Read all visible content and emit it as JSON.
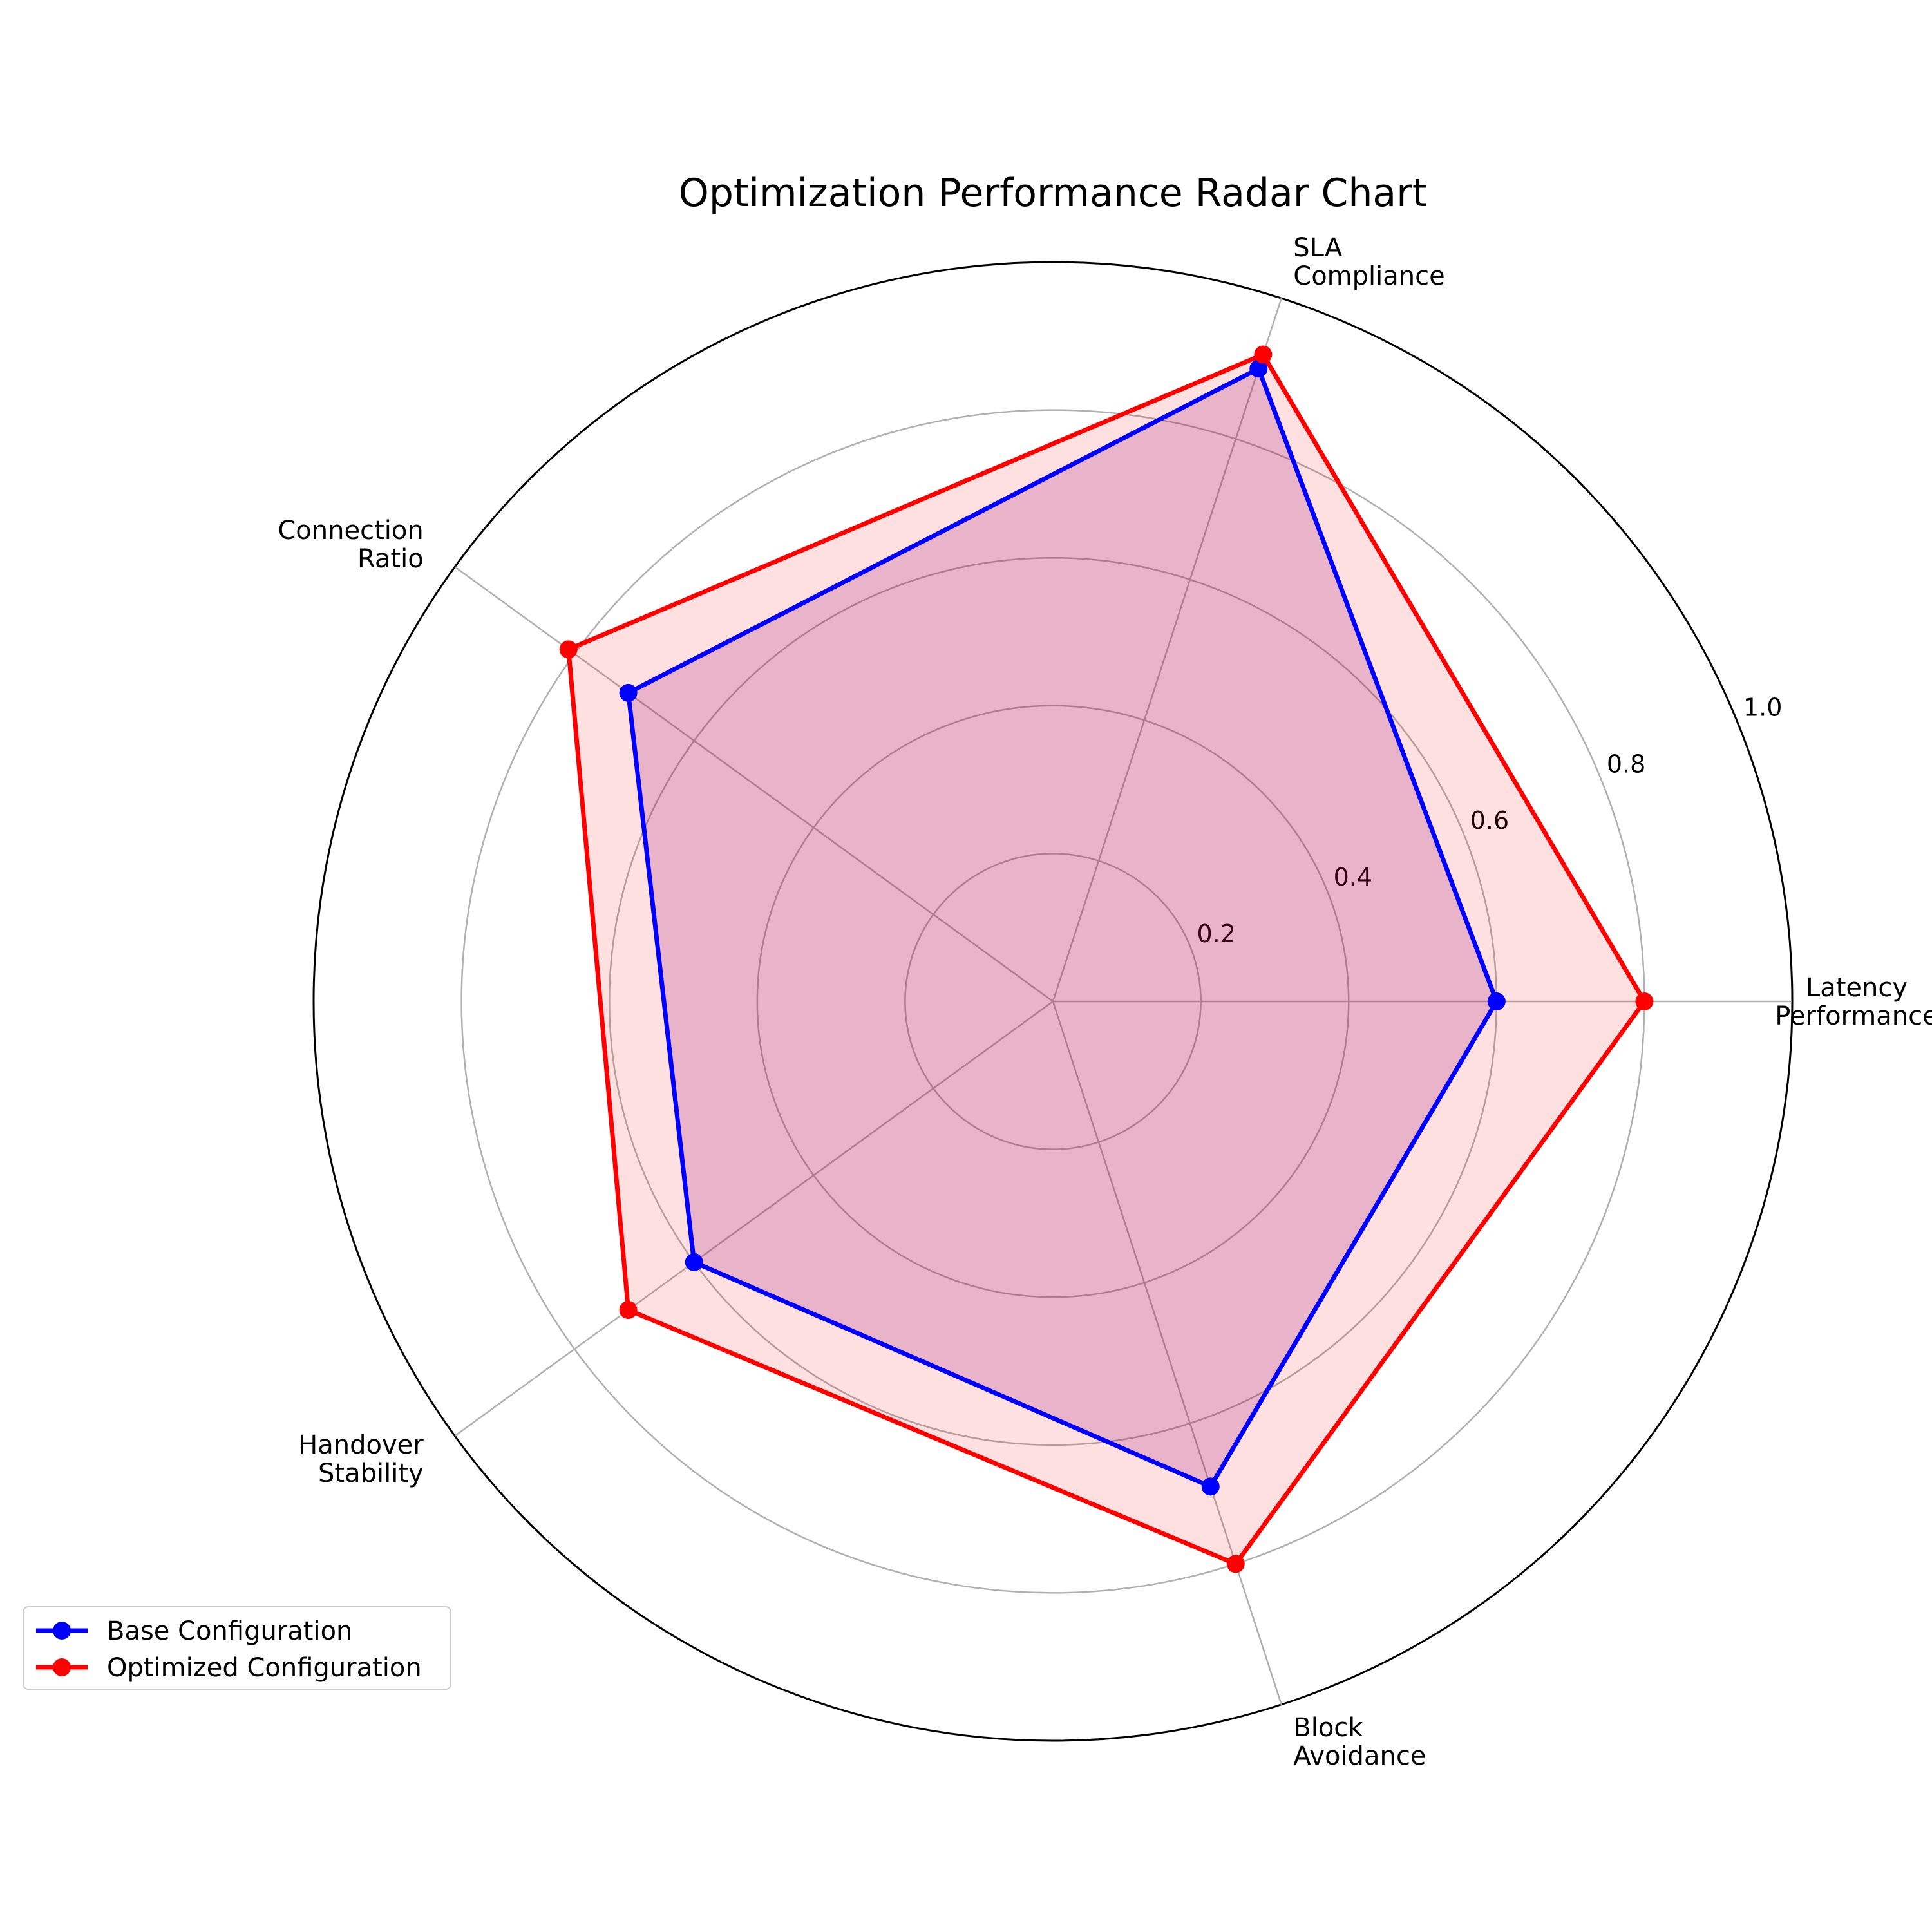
{
  "chart_data": {
    "type": "radar",
    "title": "Optimization Performance Radar Chart",
    "axes": [
      [
        "Latency",
        "Performance"
      ],
      [
        "SLA",
        "Compliance"
      ],
      [
        "Connection",
        "Ratio"
      ],
      [
        "Handover",
        "Stability"
      ],
      [
        "Block",
        "Avoidance"
      ]
    ],
    "rlim": [
      0,
      1.0
    ],
    "rticks": [
      0.2,
      0.4,
      0.6,
      0.8,
      1.0
    ],
    "rtick_labels": [
      "0.2",
      "0.4",
      "0.6",
      "0.8",
      "1.0"
    ],
    "grid": true,
    "legend_position": "bottom-left",
    "series": [
      {
        "name": "Base Configuration",
        "values": [
          0.6,
          0.9,
          0.71,
          0.6,
          0.69
        ],
        "color": "#0000ff",
        "fill": "#800080",
        "fill_opacity": 0.2
      },
      {
        "name": "Optimized Configuration",
        "values": [
          0.8,
          0.92,
          0.81,
          0.71,
          0.8
        ],
        "color": "#ff0000",
        "fill": "#ff0000",
        "fill_opacity": 0.12
      }
    ]
  }
}
